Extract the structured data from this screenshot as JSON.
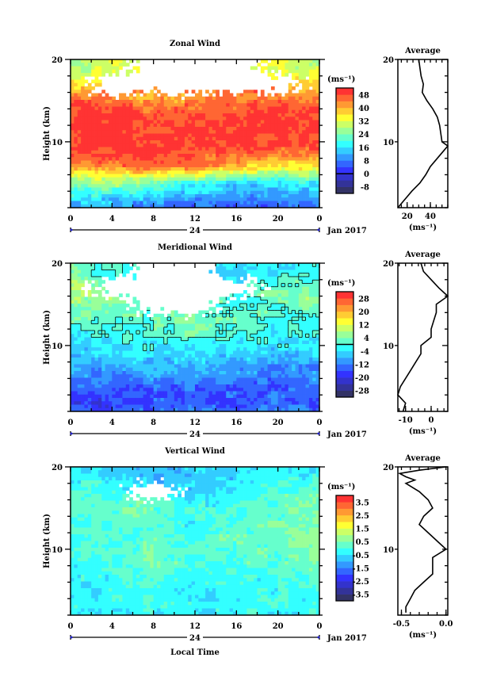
{
  "figure": {
    "time_unit_label": "Local Time",
    "date_label": "Jan 2017",
    "day_span_label": "24",
    "y_label": "Height (km)",
    "units_label": "(ms⁻¹)",
    "avg_title": "Average"
  },
  "chart_data": [
    {
      "type": "heatmap",
      "title": "Zonal Wind",
      "xlabel": "",
      "ylabel": "Height (km)",
      "xlim": [
        0,
        24
      ],
      "ylim": [
        2,
        20
      ],
      "x_ticks": [
        "0",
        "4",
        "8",
        "12",
        "16",
        "20",
        "0"
      ],
      "y_ticks": [
        "10",
        "20"
      ],
      "times": [
        0,
        4,
        8,
        12,
        16,
        20,
        24
      ],
      "heights": [
        19,
        17,
        15,
        13,
        11,
        9,
        7,
        5,
        3,
        1
      ],
      "values": [
        [
          28,
          30,
          null,
          null,
          null,
          32,
          30
        ],
        [
          36,
          null,
          null,
          null,
          null,
          null,
          36
        ],
        [
          46,
          46,
          40,
          44,
          44,
          46,
          46
        ],
        [
          50,
          50,
          48,
          48,
          50,
          50,
          50
        ],
        [
          50,
          50,
          50,
          50,
          50,
          50,
          50
        ],
        [
          50,
          50,
          50,
          50,
          48,
          46,
          46
        ],
        [
          40,
          44,
          46,
          44,
          40,
          36,
          36
        ],
        [
          24,
          28,
          24,
          20,
          16,
          16,
          18
        ],
        [
          16,
          14,
          12,
          10,
          8,
          8,
          10
        ],
        [
          8,
          6,
          4,
          2,
          0,
          2,
          4
        ]
      ],
      "colorbar": {
        "min": -12,
        "step": 4,
        "ticks": [
          "48",
          "40",
          "32",
          "24",
          "16",
          "8",
          "0",
          "-8"
        ],
        "zero": 0
      },
      "average": {
        "xlim": [
          12,
          55
        ],
        "x_ticks": [
          "20",
          "40"
        ],
        "x_tick_values": [
          20,
          40
        ],
        "heights": [
          20,
          19,
          18,
          17,
          16,
          15,
          14,
          13,
          12,
          11,
          10,
          9.5,
          9,
          8,
          7,
          6,
          5,
          4,
          3,
          2
        ],
        "values": [
          30,
          31,
          32,
          34,
          33,
          37,
          42,
          46,
          48,
          49,
          50,
          55,
          52,
          46,
          40,
          36,
          31,
          24,
          18,
          12
        ]
      }
    },
    {
      "type": "heatmap",
      "title": "Meridional Wind",
      "xlabel": "",
      "ylabel": "Height (km)",
      "xlim": [
        0,
        24
      ],
      "ylim": [
        2,
        20
      ],
      "x_ticks": [
        "0",
        "4",
        "8",
        "12",
        "16",
        "20",
        "0"
      ],
      "y_ticks": [
        "10",
        "20"
      ],
      "times": [
        0,
        4,
        8,
        12,
        16,
        20,
        24
      ],
      "heights": [
        19,
        17,
        15,
        13,
        11,
        9,
        7,
        5,
        3,
        1
      ],
      "values": [
        [
          4,
          0,
          null,
          null,
          -4,
          -4,
          0
        ],
        [
          8,
          null,
          null,
          null,
          null,
          4,
          4
        ],
        [
          6,
          4,
          null,
          null,
          0,
          2,
          6
        ],
        [
          2,
          0,
          2,
          4,
          2,
          0,
          0
        ],
        [
          -2,
          -2,
          0,
          2,
          -2,
          -2,
          -2
        ],
        [
          -6,
          -6,
          -4,
          -4,
          -6,
          -6,
          -6
        ],
        [
          -10,
          -10,
          -8,
          -8,
          -10,
          -12,
          -10
        ],
        [
          -14,
          -14,
          -14,
          -14,
          -14,
          -14,
          -12
        ],
        [
          -18,
          -18,
          -16,
          -16,
          -16,
          -14,
          -14
        ],
        [
          -12,
          -12,
          -12,
          -10,
          -12,
          -10,
          -12
        ]
      ],
      "colorbar": {
        "min": -32,
        "step": 4,
        "ticks": [
          "28",
          "20",
          "12",
          "4",
          "-4",
          "-12",
          "-20",
          "-28"
        ],
        "zero": 0
      },
      "average": {
        "xlim": [
          -13,
          6.5
        ],
        "x_ticks": [
          "-10",
          "0"
        ],
        "x_tick_values": [
          -10,
          0
        ],
        "heights": [
          20,
          19,
          18,
          17,
          16,
          15,
          14,
          13,
          12,
          11,
          10,
          9,
          8,
          7,
          6,
          5,
          4,
          3,
          2
        ],
        "values": [
          -4,
          -3,
          0,
          3,
          6.5,
          2,
          2,
          1,
          0,
          0,
          -4,
          -4,
          -6,
          -8,
          -10,
          -12,
          -13,
          -10,
          -11
        ]
      }
    },
    {
      "type": "heatmap",
      "title": "Vertical Wind",
      "xlabel": "Local Time",
      "ylabel": "Height (km)",
      "xlim": [
        0,
        24
      ],
      "ylim": [
        2,
        20
      ],
      "x_ticks": [
        "0",
        "4",
        "8",
        "12",
        "16",
        "20",
        "0"
      ],
      "y_ticks": [
        "10",
        "20"
      ],
      "times": [
        0,
        4,
        8,
        12,
        16,
        20,
        24
      ],
      "heights": [
        19,
        17,
        15,
        13,
        11,
        9,
        7,
        5,
        3,
        1
      ],
      "values": [
        [
          -0.4,
          -0.6,
          -1.0,
          -0.8,
          -0.6,
          -0.4,
          -0.4
        ],
        [
          0.2,
          0.0,
          null,
          -0.6,
          -0.4,
          0.0,
          0.2
        ],
        [
          0.2,
          0.4,
          0.2,
          -0.2,
          0.0,
          0.2,
          0.4
        ],
        [
          0.0,
          0.2,
          0.0,
          -0.2,
          0.2,
          0.4,
          0.6
        ],
        [
          0.0,
          0.2,
          0.2,
          0.0,
          0.2,
          0.4,
          0.8
        ],
        [
          -0.2,
          0.0,
          0.4,
          0.0,
          0.2,
          0.2,
          0.6
        ],
        [
          -0.2,
          -0.2,
          0.2,
          -0.2,
          0.0,
          0.0,
          0.2
        ],
        [
          -0.4,
          -0.2,
          0.0,
          -0.4,
          -0.2,
          -0.2,
          0.0
        ],
        [
          -0.4,
          -0.4,
          -0.2,
          -0.4,
          -0.2,
          -0.2,
          -0.2
        ],
        [
          -0.4,
          -0.4,
          -0.4,
          -0.4,
          -0.4,
          -0.4,
          -0.4
        ]
      ],
      "colorbar": {
        "min": -4,
        "step": 0.5,
        "ticks": [
          "3.5",
          "2.5",
          "1.5",
          "0.5",
          "-0.5",
          "-1.5",
          "-2.5",
          "-3.5"
        ],
        "zero": null
      },
      "average": {
        "xlim": [
          -0.54,
          0.02
        ],
        "x_ticks": [
          "-0.5",
          "0.0"
        ],
        "x_tick_values": [
          -0.5,
          0.0
        ],
        "heights": [
          20,
          19.6,
          19.2,
          18.8,
          18.4,
          18,
          17,
          16,
          15,
          14,
          13,
          12,
          11,
          10,
          9,
          8,
          7,
          6,
          5,
          4,
          3,
          2.3
        ],
        "values": [
          0.0,
          -0.3,
          -0.52,
          -0.45,
          -0.35,
          -0.45,
          -0.3,
          -0.2,
          -0.15,
          -0.25,
          -0.3,
          -0.2,
          -0.1,
          0.0,
          -0.15,
          -0.15,
          -0.15,
          -0.25,
          -0.35,
          -0.4,
          -0.45,
          -0.45
        ]
      }
    }
  ]
}
